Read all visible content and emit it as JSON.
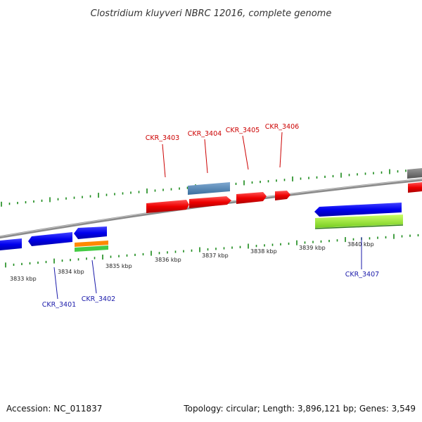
{
  "title": "Clostridium kluyveri NBRC 12016, complete genome",
  "footer": {
    "accession": "Accession: NC_011837",
    "topology": "Topology: circular; Length: 3,896,121 bp; Genes: 3,549"
  },
  "scale": {
    "unit": "kbp",
    "ticks": [
      {
        "label": "3833 kbp"
      },
      {
        "label": "3834 kbp"
      },
      {
        "label": "3835 kbp"
      },
      {
        "label": "3836 kbp"
      },
      {
        "label": "3837 kbp"
      },
      {
        "label": "3838 kbp"
      },
      {
        "label": "3839 kbp"
      },
      {
        "label": "3840 kbp"
      }
    ]
  },
  "genes": [
    {
      "name": "CKR_3401",
      "strand": "-",
      "color": "#0000ee"
    },
    {
      "name": "CKR_3402",
      "strand": "-",
      "color": "#0000ee"
    },
    {
      "name": "CKR_3403",
      "strand": "+",
      "color": "#ee0000"
    },
    {
      "name": "CKR_3404",
      "strand": "+",
      "color": "#ee0000"
    },
    {
      "name": "CKR_3405",
      "strand": "+",
      "color": "#ee0000"
    },
    {
      "name": "CKR_3406",
      "strand": "+",
      "color": "#ee0000"
    },
    {
      "name": "CKR_3407",
      "strand": "-",
      "color": "#0000ee"
    }
  ],
  "colors": {
    "forward_gene": "#ee0000",
    "reverse_gene": "#0000ee",
    "backbone": "#8a8a8a",
    "ticks": "#1a8a1a",
    "feature_blue": "#4682b4",
    "feature_orange": "#ff8800",
    "feature_green": "#44cc44",
    "feature_lime": "#99ee33",
    "feature_gray": "#666666"
  }
}
